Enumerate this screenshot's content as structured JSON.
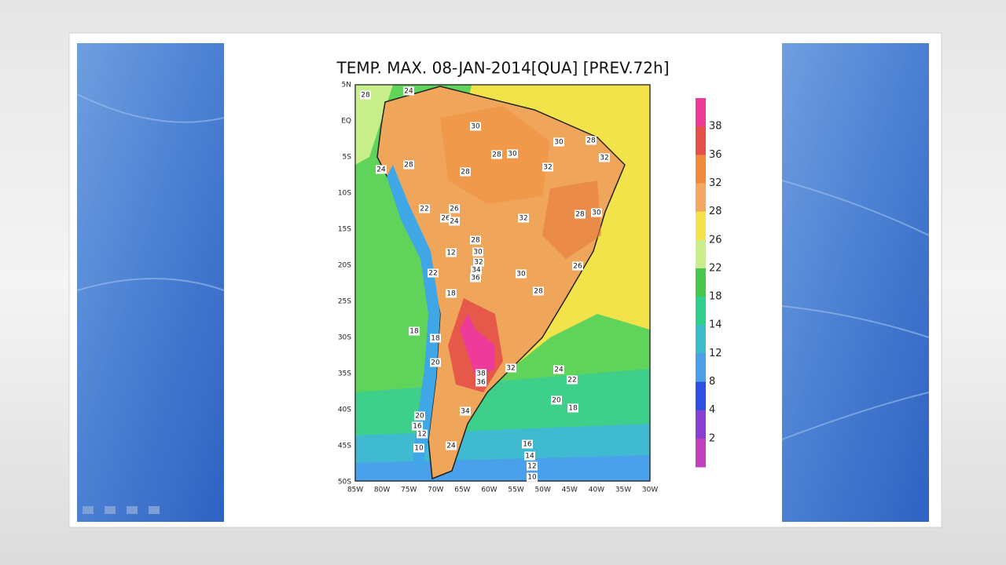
{
  "map": {
    "title": "TEMP. MAX. 08-JAN-2014[QUA] [PREV.72h]",
    "lat_labels": [
      "5N",
      "EQ",
      "5S",
      "10S",
      "15S",
      "20S",
      "25S",
      "30S",
      "35S",
      "40S",
      "45S",
      "50S"
    ],
    "lon_labels": [
      "85W",
      "80W",
      "75W",
      "70W",
      "65W",
      "60W",
      "55W",
      "50W",
      "45W",
      "40W",
      "35W",
      "30W"
    ],
    "colorbar_labels": [
      "38",
      "36",
      "32",
      "28",
      "26",
      "22",
      "18",
      "14",
      "12",
      "8",
      "4",
      "2"
    ],
    "contour_labels": [
      "28",
      "24",
      "30",
      "30",
      "28",
      "32",
      "28",
      "30",
      "32",
      "28",
      "24",
      "28",
      "22",
      "26",
      "26",
      "24",
      "32",
      "28",
      "30",
      "28",
      "30",
      "12",
      "32",
      "34",
      "36",
      "22",
      "30",
      "26",
      "28",
      "18",
      "18",
      "18",
      "20",
      "38",
      "36",
      "32",
      "24",
      "22",
      "20",
      "18",
      "34",
      "20",
      "16",
      "12",
      "10",
      "24",
      "16",
      "14",
      "12",
      "10"
    ]
  }
}
